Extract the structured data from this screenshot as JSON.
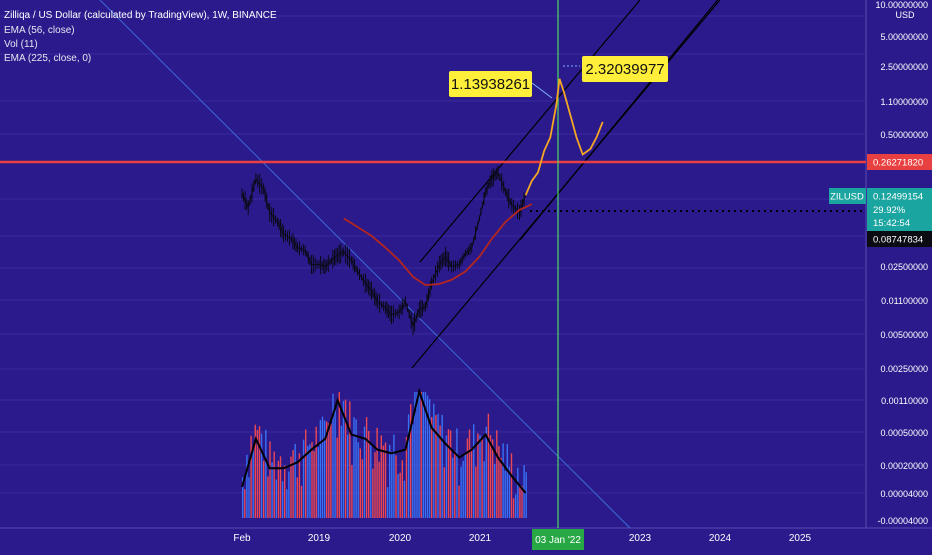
{
  "header": {
    "title": "Zilliqa / US Dollar (calculated by TradingView), 1W, BINANCE",
    "indicators": [
      "EMA (56, close)",
      "Vol (11)",
      "EMA (225, close, 0)"
    ]
  },
  "colors": {
    "background": "#2b1a8c",
    "price_candles": "#0a0a14",
    "ema56": "#b3261e",
    "projection": "#f5a623",
    "channel": "#000000",
    "trendline": "#3d6bd8",
    "resistance": "#e84040",
    "vertical_marker": "#4cd964",
    "volume_up": "#3a7bff",
    "volume_down": "#ff4d4d",
    "volume_ma": "#000000"
  },
  "chart_data": {
    "type": "line",
    "symbol": "ZILUSD",
    "yscale": "log",
    "price_axis_labels": [
      "10.00000000",
      "5.00000000",
      "2.50000000",
      "1.10000000",
      "0.50000000",
      "0.02500000",
      "0.01100000",
      "0.00500000",
      "0.00250000",
      "0.00110000",
      "0.00050000",
      "0.00020000",
      "0.00004000",
      "-0.00004000"
    ],
    "price_axis_unit": "USD",
    "time_axis_labels": [
      "Feb",
      "2019",
      "2020",
      "2021",
      "2023",
      "2024",
      "2025"
    ],
    "highlight_date": "03 Jan '22",
    "price_tags": {
      "resistance": "0.26271820",
      "symbol": "ZILUSD",
      "last": "0.12499154",
      "change": "29.92%",
      "countdown": "15:42:54",
      "ema": "0.08747834"
    },
    "annotations": [
      "1.13938261",
      "2.32039977"
    ],
    "series": [
      {
        "role": "price",
        "x": [
          "2018-01-29",
          "2018-02-26",
          "2018-04-02",
          "2018-05-07",
          "2018-06-04",
          "2018-07-09",
          "2018-08-06",
          "2018-09-10",
          "2018-10-08",
          "2018-11-12",
          "2018-12-10",
          "2019-01-14",
          "2019-02-11",
          "2019-03-11",
          "2019-04-08",
          "2019-05-06",
          "2019-06-10",
          "2019-07-08",
          "2019-08-12",
          "2019-09-09",
          "2019-10-07",
          "2019-11-11",
          "2019-12-09",
          "2020-01-13",
          "2020-02-10",
          "2020-03-16",
          "2020-04-13",
          "2020-05-11",
          "2020-06-08",
          "2020-07-13",
          "2020-08-10",
          "2020-09-07",
          "2020-10-12",
          "2020-11-09",
          "2020-12-07",
          "2021-01-11",
          "2021-02-08",
          "2021-03-08",
          "2021-04-05",
          "2021-05-10",
          "2021-06-07",
          "2021-07-12",
          "2021-08-09"
        ],
        "y": [
          0.115,
          0.08,
          0.17,
          0.13,
          0.07,
          0.055,
          0.04,
          0.035,
          0.028,
          0.026,
          0.018,
          0.018,
          0.017,
          0.02,
          0.023,
          0.025,
          0.02,
          0.015,
          0.011,
          0.009,
          0.0068,
          0.0058,
          0.0048,
          0.0052,
          0.0068,
          0.0036,
          0.0055,
          0.006,
          0.011,
          0.018,
          0.022,
          0.017,
          0.018,
          0.024,
          0.028,
          0.06,
          0.12,
          0.17,
          0.2,
          0.12,
          0.085,
          0.07,
          0.11
        ]
      },
      {
        "role": "ema56",
        "x": [
          "2019-05-06",
          "2019-07-08",
          "2019-09-09",
          "2019-11-11",
          "2020-01-13",
          "2020-03-16",
          "2020-05-11",
          "2020-07-13",
          "2020-09-07",
          "2020-11-09",
          "2021-01-11",
          "2021-03-08",
          "2021-05-10",
          "2021-07-12",
          "2021-09-06"
        ],
        "y": [
          0.06,
          0.048,
          0.038,
          0.028,
          0.02,
          0.013,
          0.0105,
          0.0108,
          0.012,
          0.015,
          0.022,
          0.035,
          0.055,
          0.075,
          0.087
        ]
      },
      {
        "role": "projection",
        "x": [
          "2021-08-09",
          "2021-09-06",
          "2021-10-04",
          "2021-11-01",
          "2021-11-29",
          "2021-12-27",
          "2022-01-10",
          "2022-01-31",
          "2022-02-28",
          "2022-03-28",
          "2022-04-25",
          "2022-05-30",
          "2022-06-27",
          "2022-07-25"
        ],
        "y": [
          0.11,
          0.16,
          0.2,
          0.35,
          0.5,
          1.2,
          2.32,
          1.6,
          0.9,
          0.5,
          0.32,
          0.37,
          0.5,
          0.75
        ]
      }
    ],
    "volume_ma": {
      "x": [
        "2018-01-29",
        "2018-04-02",
        "2018-06-04",
        "2018-08-06",
        "2018-10-08",
        "2018-12-10",
        "2019-02-11",
        "2019-04-08",
        "2019-06-10",
        "2019-08-12",
        "2019-10-07",
        "2019-12-09",
        "2020-02-10",
        "2020-04-13",
        "2020-06-08",
        "2020-08-10",
        "2020-10-12",
        "2020-12-07",
        "2021-02-08",
        "2021-04-05",
        "2021-06-07",
        "2021-08-09"
      ],
      "y": [
        1e-05,
        6e-05,
        2e-05,
        2e-05,
        2.5e-05,
        4e-05,
        6e-05,
        0.00025,
        7e-05,
        6e-05,
        4e-05,
        3.5e-05,
        4e-05,
        0.00035,
        9e-05,
        5e-05,
        3e-05,
        4e-05,
        7e-05,
        3e-05,
        1.5e-05,
        8e-06
      ]
    }
  }
}
